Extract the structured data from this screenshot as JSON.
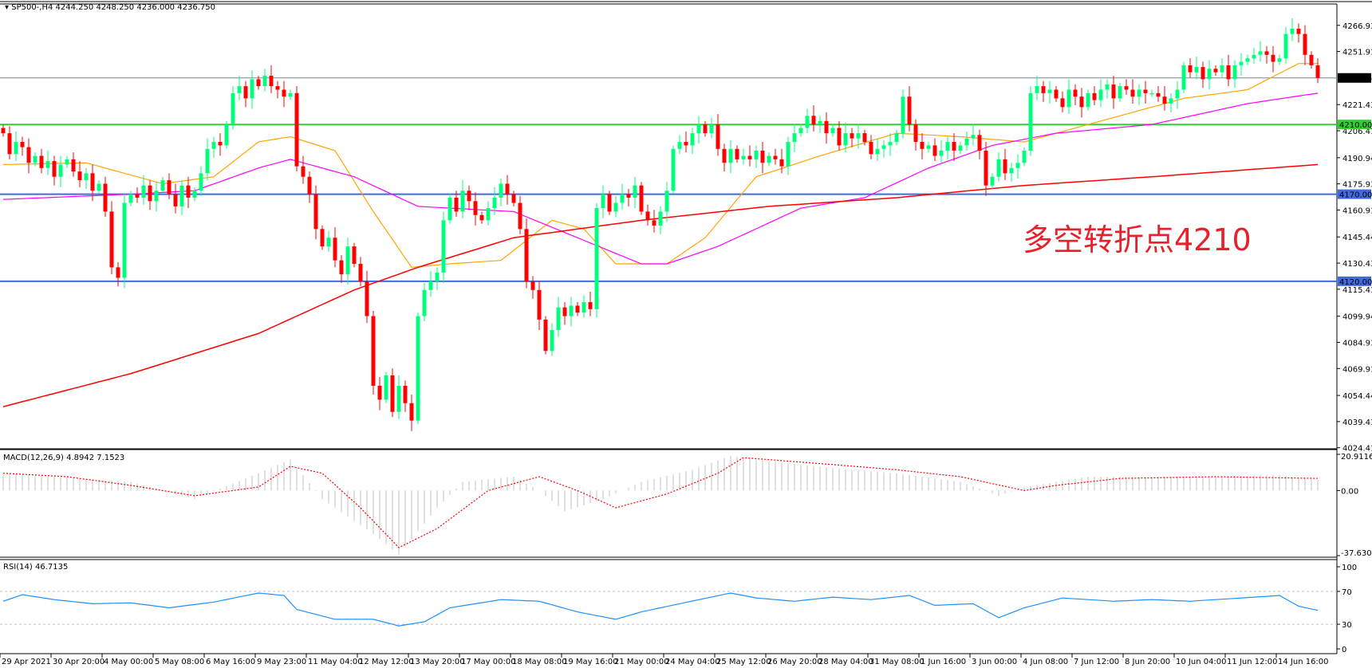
{
  "header": {
    "symbol": "SP500-,H4",
    "ohlc": "4244.250 4248.250 4236.000 4236.750"
  },
  "macd_label": "MACD(12,26,9) 4.8942 7.1523",
  "rsi_label": "RSI(14) 46.7135",
  "annotation": "多空转折点4210",
  "colors": {
    "bull": "#00ff7f",
    "bear": "#ff0000",
    "ma_fast": "#ffa500",
    "ma_mid": "#ff00ff",
    "ma_slow": "#ff0000",
    "support_green": "#32cd32",
    "support_blue": "#4169e1",
    "current_line": "#778899",
    "macd_hist": "#c0c0c0",
    "macd_signal": "#ff0000",
    "rsi": "#1e90ff"
  },
  "chart_data": [
    {
      "type": "candlestick",
      "ylim": [
        4024.415,
        4266.93
      ],
      "price_ticks": [
        "4266.930",
        "4251.915",
        "4221.430",
        "4206.415",
        "4190.945",
        "4175.930",
        "4160.915",
        "4145.445",
        "4130.430",
        "4115.415",
        "4099.945",
        "4084.930",
        "4069.915",
        "4054.445",
        "4039.430",
        "4024.415"
      ],
      "time_labels": [
        "29 Apr 2021",
        "30 Apr 20:00",
        "4 May 00:00",
        "5 May 08:00",
        "6 May 16:00",
        "9 May 23:00",
        "11 May 04:00",
        "12 May 12:00",
        "13 May 20:00",
        "17 May 00:00",
        "18 May 08:00",
        "19 May 16:00",
        "21 May 00:00",
        "24 May 04:00",
        "25 May 12:00",
        "26 May 20:00",
        "28 May 04:00",
        "31 May 08:00",
        "1 Jun 16:00",
        "3 Jun 00:00",
        "4 Jun 08:00",
        "7 Jun 12:00",
        "8 Jun 20:00",
        "10 Jun 04:00",
        "11 Jun 12:00",
        "14 Jun 16:00"
      ],
      "current_price": "4236.750",
      "levels": [
        {
          "value": 4210,
          "label": "4210.000",
          "color": "#32cd32"
        },
        {
          "value": 4170,
          "label": "4170.000",
          "color": "#4169e1"
        },
        {
          "value": 4120,
          "label": "4120.000",
          "color": "#4169e1"
        }
      ],
      "closes": [
        4205,
        4193,
        4200,
        4197,
        4188,
        4192,
        4185,
        4189,
        4180,
        4187,
        4190,
        4183,
        4178,
        4182,
        4172,
        4176,
        4160,
        4128,
        4122,
        4165,
        4170,
        4168,
        4175,
        4166,
        4172,
        4178,
        4170,
        4163,
        4175,
        4168,
        4172,
        4182,
        4196,
        4200,
        4198,
        4210,
        4228,
        4232,
        4225,
        4236,
        4232,
        4238,
        4232,
        4230,
        4226,
        4228,
        4186,
        4180,
        4170,
        4150,
        4140,
        4145,
        4132,
        4124,
        4140,
        4130,
        4120,
        4100,
        4060,
        4052,
        4066,
        4045,
        4060,
        4050,
        4040,
        4100,
        4115,
        4120,
        4125,
        4155,
        4168,
        4160,
        4172,
        4166,
        4158,
        4155,
        4162,
        4168,
        4176,
        4170,
        4165,
        4150,
        4120,
        4115,
        4098,
        4080,
        4092,
        4105,
        4100,
        4106,
        4102,
        4108,
        4104,
        4162,
        4170,
        4160,
        4165,
        4170,
        4168,
        4175,
        4160,
        4155,
        4152,
        4160,
        4172,
        4196,
        4200,
        4198,
        4205,
        4210,
        4205,
        4210,
        4196,
        4188,
        4196,
        4190,
        4192,
        4190,
        4195,
        4188,
        4192,
        4190,
        4186,
        4200,
        4205,
        4208,
        4215,
        4210,
        4212,
        4205,
        4208,
        4198,
        4205,
        4202,
        4205,
        4200,
        4193,
        4196,
        4198,
        4200,
        4205,
        4226,
        4210,
        4200,
        4196,
        4198,
        4192,
        4195,
        4200,
        4195,
        4198,
        4202,
        4204,
        4195,
        4175,
        4180,
        4190,
        4182,
        4185,
        4188,
        4195,
        4228,
        4232,
        4228,
        4230,
        4225,
        4220,
        4230,
        4226,
        4220,
        4228,
        4224,
        4230,
        4233,
        4225,
        4232,
        4230,
        4226,
        4230,
        4228,
        4228,
        4226,
        4222,
        4225,
        4230,
        4244,
        4240,
        4243,
        4236,
        4242,
        4240,
        4244,
        4236,
        4244,
        4246,
        4248,
        4250,
        4252,
        4250,
        4246,
        4248,
        4262,
        4265,
        4262,
        4250,
        4244,
        4236.75
      ],
      "moving_averages": [
        {
          "color": "#ffa500",
          "points": [
            [
              0,
              4187
            ],
            [
              13,
              4188
            ],
            [
              25,
              4176
            ],
            [
              33,
              4180
            ],
            [
              40,
              4200
            ],
            [
              45,
              4203
            ],
            [
              52,
              4195
            ],
            [
              58,
              4160
            ],
            [
              64,
              4128
            ],
            [
              70,
              4130
            ],
            [
              78,
              4132
            ],
            [
              86,
              4155
            ],
            [
              91,
              4150
            ],
            [
              96,
              4130
            ],
            [
              104,
              4130
            ],
            [
              110,
              4145
            ],
            [
              118,
              4180
            ],
            [
              128,
              4192
            ],
            [
              140,
              4205
            ],
            [
              150,
              4203
            ],
            [
              160,
              4200
            ],
            [
              170,
              4210
            ],
            [
              185,
              4225
            ],
            [
              195,
              4230
            ],
            [
              203,
              4245
            ],
            [
              206,
              4245
            ]
          ]
        },
        {
          "color": "#ff00ff",
          "points": [
            [
              0,
              4167
            ],
            [
              20,
              4170
            ],
            [
              30,
              4172
            ],
            [
              40,
              4185
            ],
            [
              45,
              4190
            ],
            [
              55,
              4180
            ],
            [
              65,
              4163
            ],
            [
              80,
              4160
            ],
            [
              90,
              4145
            ],
            [
              100,
              4130
            ],
            [
              104,
              4130
            ],
            [
              112,
              4140
            ],
            [
              125,
              4162
            ],
            [
              135,
              4168
            ],
            [
              145,
              4185
            ],
            [
              155,
              4198
            ],
            [
              165,
              4205
            ],
            [
              180,
              4210
            ],
            [
              195,
              4222
            ],
            [
              206,
              4228
            ]
          ]
        },
        {
          "color": "#ff0000",
          "points": [
            [
              0,
              4048
            ],
            [
              20,
              4067
            ],
            [
              40,
              4090
            ],
            [
              55,
              4115
            ],
            [
              65,
              4128
            ],
            [
              80,
              4145
            ],
            [
              100,
              4155
            ],
            [
              120,
              4163
            ],
            [
              140,
              4168
            ],
            [
              160,
              4175
            ],
            [
              180,
              4180
            ],
            [
              206,
              4187
            ]
          ]
        }
      ]
    },
    {
      "type": "bar",
      "name": "MACD(12,26,9)",
      "ylim": [
        -37.6302,
        20.9116
      ],
      "ticks": [
        "20.9116",
        "0.00",
        "-37.6302"
      ],
      "histogram": [
        [
          0,
          10
        ],
        [
          20,
          5
        ],
        [
          30,
          -5
        ],
        [
          40,
          10
        ],
        [
          45,
          18
        ],
        [
          50,
          -5
        ],
        [
          58,
          -25
        ],
        [
          62,
          -37
        ],
        [
          68,
          -10
        ],
        [
          72,
          5
        ],
        [
          80,
          8
        ],
        [
          84,
          0
        ],
        [
          88,
          -12
        ],
        [
          94,
          -5
        ],
        [
          100,
          5
        ],
        [
          108,
          12
        ],
        [
          114,
          20
        ],
        [
          120,
          17
        ],
        [
          130,
          13
        ],
        [
          140,
          10
        ],
        [
          150,
          5
        ],
        [
          156,
          -3
        ],
        [
          160,
          2
        ],
        [
          170,
          8
        ],
        [
          185,
          8
        ],
        [
          200,
          9
        ],
        [
          206,
          6
        ]
      ],
      "signal": [
        [
          0,
          10
        ],
        [
          10,
          8
        ],
        [
          20,
          3
        ],
        [
          30,
          -3
        ],
        [
          40,
          2
        ],
        [
          45,
          14
        ],
        [
          50,
          10
        ],
        [
          56,
          -10
        ],
        [
          62,
          -33
        ],
        [
          68,
          -22
        ],
        [
          76,
          0
        ],
        [
          84,
          8
        ],
        [
          90,
          0
        ],
        [
          96,
          -10
        ],
        [
          104,
          -2
        ],
        [
          112,
          10
        ],
        [
          116,
          19
        ],
        [
          130,
          15
        ],
        [
          140,
          12
        ],
        [
          150,
          8
        ],
        [
          160,
          0
        ],
        [
          165,
          3
        ],
        [
          175,
          7
        ],
        [
          190,
          8
        ],
        [
          206,
          7
        ]
      ]
    },
    {
      "type": "line",
      "name": "RSI(14)",
      "ylim": [
        0,
        100
      ],
      "ticks": [
        "100",
        "70",
        "30",
        "0"
      ],
      "levels": [
        70,
        30
      ],
      "values": [
        [
          0,
          58
        ],
        [
          3,
          66
        ],
        [
          8,
          60
        ],
        [
          14,
          55
        ],
        [
          20,
          56
        ],
        [
          26,
          50
        ],
        [
          33,
          57
        ],
        [
          40,
          68
        ],
        [
          44,
          65
        ],
        [
          46,
          48
        ],
        [
          52,
          36
        ],
        [
          58,
          36
        ],
        [
          62,
          28
        ],
        [
          66,
          33
        ],
        [
          70,
          50
        ],
        [
          78,
          60
        ],
        [
          84,
          58
        ],
        [
          90,
          45
        ],
        [
          96,
          36
        ],
        [
          100,
          45
        ],
        [
          106,
          55
        ],
        [
          114,
          68
        ],
        [
          118,
          62
        ],
        [
          124,
          58
        ],
        [
          130,
          63
        ],
        [
          136,
          60
        ],
        [
          142,
          65
        ],
        [
          146,
          53
        ],
        [
          152,
          55
        ],
        [
          156,
          38
        ],
        [
          160,
          50
        ],
        [
          166,
          62
        ],
        [
          174,
          58
        ],
        [
          180,
          60
        ],
        [
          186,
          58
        ],
        [
          194,
          62
        ],
        [
          200,
          65
        ],
        [
          203,
          52
        ],
        [
          206,
          47
        ]
      ]
    }
  ]
}
